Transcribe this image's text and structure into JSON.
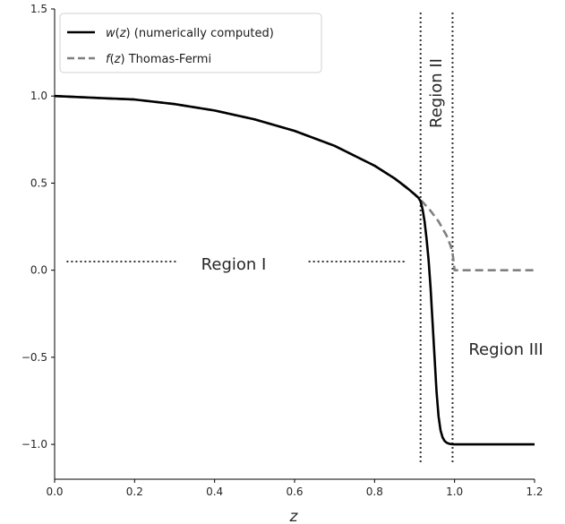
{
  "chart_data": {
    "type": "line",
    "title": "",
    "xlabel": "z",
    "ylabel": "",
    "xlim": [
      0.0,
      1.2
    ],
    "ylim": [
      -1.2,
      1.5
    ],
    "xticks": [
      "0.0",
      "0.2",
      "0.4",
      "0.6",
      "0.8",
      "1.0",
      "1.2"
    ],
    "yticks": [
      "−1.0",
      "−0.5",
      "0.0",
      "0.5",
      "1.0",
      "1.5"
    ],
    "grid": false,
    "legend_position": "top-left",
    "series": [
      {
        "legend_func": "w",
        "legend_arg": "z",
        "legend_rest": " (numerically computed)",
        "style": "solid",
        "color": "#000000",
        "x": [
          0.0,
          0.1,
          0.2,
          0.3,
          0.4,
          0.5,
          0.6,
          0.7,
          0.8,
          0.85,
          0.88,
          0.9,
          0.91,
          0.915,
          0.92,
          0.925,
          0.93,
          0.935,
          0.94,
          0.945,
          0.95,
          0.955,
          0.96,
          0.965,
          0.97,
          0.975,
          0.98,
          0.985,
          0.99,
          1.0,
          1.02,
          1.05,
          1.1,
          1.2
        ],
        "y": [
          1.0,
          0.99,
          0.98,
          0.954,
          0.917,
          0.866,
          0.8,
          0.714,
          0.6,
          0.527,
          0.475,
          0.436,
          0.415,
          0.395,
          0.35,
          0.28,
          0.18,
          0.06,
          -0.1,
          -0.3,
          -0.5,
          -0.7,
          -0.84,
          -0.92,
          -0.96,
          -0.98,
          -0.99,
          -0.995,
          -0.998,
          -1.0,
          -1.0,
          -1.0,
          -1.0,
          -1.0
        ]
      },
      {
        "legend_func": "f",
        "legend_arg": "z",
        "legend_rest": " Thomas-Fermi",
        "style": "dashed",
        "color": "#7f7f7f",
        "x": [
          0.0,
          0.1,
          0.2,
          0.3,
          0.4,
          0.5,
          0.6,
          0.7,
          0.8,
          0.85,
          0.9,
          0.92,
          0.94,
          0.96,
          0.98,
          0.99,
          0.995,
          1.0,
          1.1,
          1.2
        ],
        "y": [
          1.0,
          0.99,
          0.98,
          0.954,
          0.917,
          0.866,
          0.8,
          0.714,
          0.6,
          0.527,
          0.436,
          0.392,
          0.341,
          0.28,
          0.199,
          0.141,
          0.1,
          0.0,
          0.0,
          0.0
        ]
      }
    ],
    "vlines": [
      {
        "x": 0.915,
        "style": "dotted"
      },
      {
        "x": 0.995,
        "style": "dotted"
      }
    ],
    "hsegments": [
      {
        "x1": 0.03,
        "x2": 0.31,
        "y": 0.05,
        "style": "dotted"
      },
      {
        "x1": 0.635,
        "x2": 0.88,
        "y": 0.05,
        "style": "dotted"
      }
    ],
    "annotations": {
      "region1": "Region I",
      "region2": "Region II",
      "region3": "Region III"
    }
  }
}
